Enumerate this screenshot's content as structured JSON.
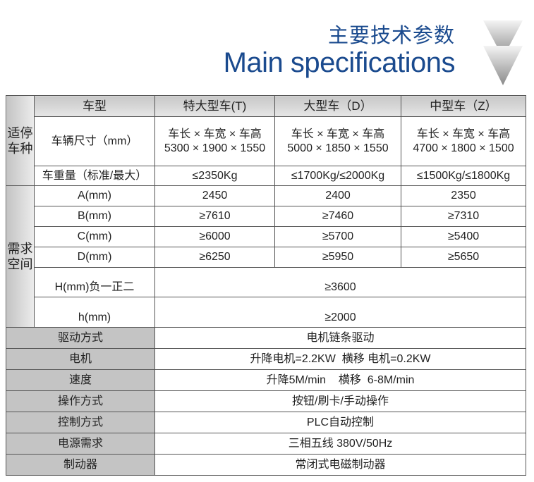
{
  "header": {
    "title_cn": "主要技术参数",
    "title_en": "Main specifications",
    "accent": "#1a4a8e",
    "arrow_icon": "down-triangle-icon"
  },
  "table": {
    "columns": [
      "车型",
      "特大型车(T)",
      "大型车（D）",
      "中型车（Z）"
    ],
    "group1": "适停车种",
    "group2": "需求空间",
    "size": {
      "label": "车辆尺寸（mm）",
      "values": [
        [
          "车长 × 车宽 × 车高",
          "5300 × 1900 × 1550"
        ],
        [
          "车长 × 车宽 × 车高",
          "5000 × 1850 × 1550"
        ],
        [
          "车长 × 车宽 × 车高",
          "4700 × 1800 × 1500"
        ]
      ]
    },
    "weight": {
      "label": "车重量（标准/最大）",
      "values": [
        "≤2350Kg",
        "≤1700Kg/≤2000Kg",
        "≤1500Kg/≤1800Kg"
      ]
    },
    "space_rows": [
      {
        "label": "A(mm)",
        "values": [
          "2450",
          "2400",
          "2350"
        ]
      },
      {
        "label": "B(mm)",
        "values": [
          "≥7610",
          "≥7460",
          "≥7310"
        ]
      },
      {
        "label": "C(mm)",
        "values": [
          "≥6000",
          "≥5700",
          "≥5400"
        ]
      },
      {
        "label": "D(mm)",
        "values": [
          "≥6250",
          "≥5950",
          "≥5650"
        ]
      }
    ],
    "H": {
      "label": "H(mm)负一正二",
      "value": "≥3600"
    },
    "h": {
      "label": "h(mm)",
      "value": "≥2000"
    },
    "bottom_rows": [
      {
        "label": "驱动方式",
        "value": "电机链条驱动"
      },
      {
        "label": "电机",
        "value": "升降电机=2.2KW  横移 电机=0.2KW"
      },
      {
        "label": "速度",
        "value": "升降5M/min    横移  6-8M/min"
      },
      {
        "label": "操作方式",
        "value": "按钮/刷卡/手动操作"
      },
      {
        "label": "控制方式",
        "value": "PLC自动控制"
      },
      {
        "label": "电源需求",
        "value": "三相五线 380V/50Hz"
      },
      {
        "label": "制动器",
        "value": "常闭式电磁制动器"
      }
    ]
  }
}
